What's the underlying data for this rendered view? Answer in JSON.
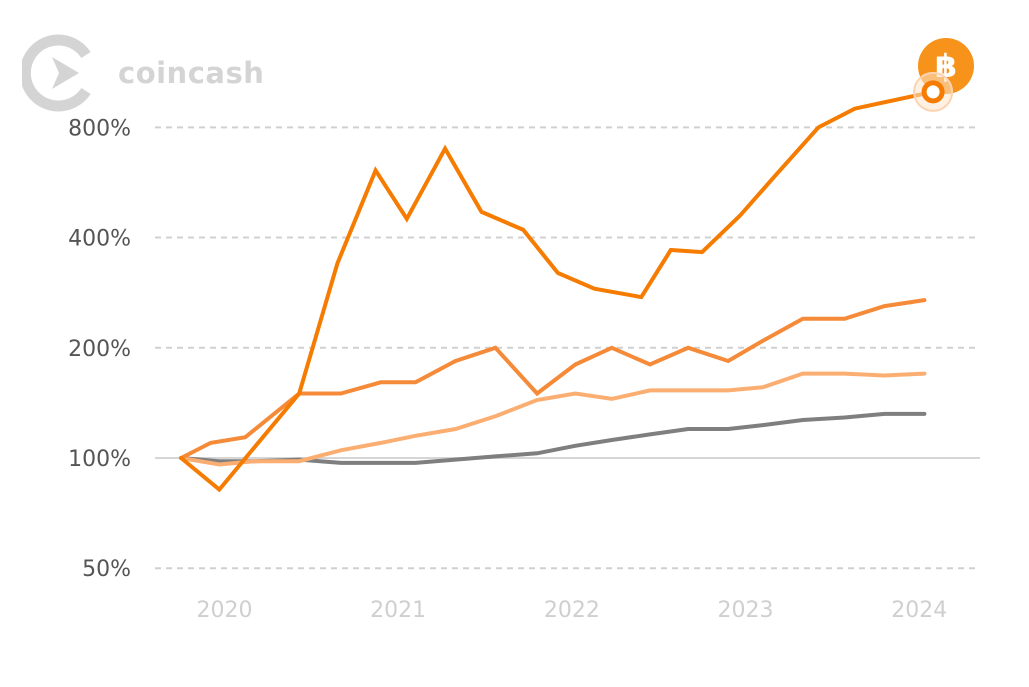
{
  "brand": {
    "name": "coincash",
    "logo_icon": "coincash-logo-icon",
    "badge_icon": "bitcoin-icon",
    "badge_color": "#f7931a"
  },
  "chart_data": {
    "type": "line",
    "yscale": "log",
    "ylim": [
      45,
      950
    ],
    "yticks": [
      50,
      100,
      200,
      400,
      800
    ],
    "ytick_labels": [
      "50%",
      "100%",
      "200%",
      "400%",
      "800%"
    ],
    "xlim": [
      2019.6,
      2024.35
    ],
    "xticks": [
      2020,
      2021,
      2022,
      2023,
      2024
    ],
    "xtick_labels": [
      "2020",
      "2021",
      "2022",
      "2023",
      "2024"
    ],
    "grid": true,
    "baseline": 100,
    "series": [
      {
        "color": "#f57c00",
        "end_marker": true,
        "x": [
          2019.75,
          2019.97,
          2020.43,
          2020.65,
          2020.87,
          2021.05,
          2021.27,
          2021.48,
          2021.72,
          2021.92,
          2022.13,
          2022.4,
          2022.57,
          2022.75,
          2022.97,
          2023.17,
          2023.42,
          2023.63,
          2024.08
        ],
        "y": [
          100,
          82,
          150,
          340,
          610,
          450,
          700,
          470,
          420,
          320,
          290,
          275,
          370,
          365,
          460,
          590,
          800,
          900,
          1000
        ]
      },
      {
        "color": "#f58a38",
        "x": [
          2019.75,
          2019.92,
          2020.12,
          2020.43,
          2020.67,
          2020.9,
          2021.1,
          2021.33,
          2021.56,
          2021.8,
          2022.02,
          2022.23,
          2022.45,
          2022.67,
          2022.9,
          2023.1,
          2023.33,
          2023.57,
          2023.8,
          2024.03
        ],
        "y": [
          100,
          110,
          114,
          150,
          150,
          161,
          161,
          184,
          200,
          150,
          180,
          200,
          180,
          200,
          184,
          209,
          240,
          240,
          260,
          270
        ]
      },
      {
        "color": "#fbae72",
        "x": [
          2019.75,
          2019.97,
          2020.17,
          2020.43,
          2020.67,
          2020.9,
          2021.1,
          2021.33,
          2021.56,
          2021.8,
          2022.02,
          2022.23,
          2022.45,
          2022.67,
          2022.9,
          2023.1,
          2023.33,
          2023.57,
          2023.8,
          2024.03
        ],
        "y": [
          100,
          96,
          98,
          98,
          105,
          110,
          115,
          120,
          130,
          144,
          150,
          145,
          153,
          153,
          153,
          156,
          170,
          170,
          168,
          170
        ]
      },
      {
        "color": "#7f7f7f",
        "x": [
          2019.75,
          2019.97,
          2020.17,
          2020.43,
          2020.67,
          2020.9,
          2021.1,
          2021.33,
          2021.56,
          2021.8,
          2022.02,
          2022.23,
          2022.45,
          2022.67,
          2022.9,
          2023.1,
          2023.33,
          2023.57,
          2023.8,
          2024.03
        ],
        "y": [
          100,
          98,
          98,
          99,
          97,
          97,
          97,
          99,
          101,
          103,
          108,
          112,
          116,
          120,
          120,
          123,
          127,
          129,
          132,
          132
        ]
      }
    ]
  }
}
